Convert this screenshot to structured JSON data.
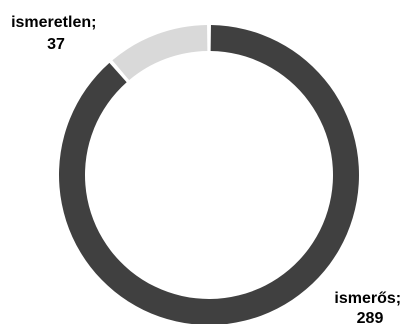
{
  "chart_data": {
    "type": "pie",
    "variant": "doughnut",
    "title": "",
    "slices": [
      {
        "label": "ismerős",
        "value": 289,
        "color": "#404040"
      },
      {
        "label": "ismeretlen",
        "value": 37,
        "color": "#d9d9d9"
      }
    ],
    "data_labels": [
      {
        "line1": "ismerős;",
        "line2": "289"
      },
      {
        "line1": "ismeretlen;",
        "line2": "37"
      }
    ],
    "start_angle_deg": 0,
    "direction": "clockwise",
    "legend": "none"
  }
}
